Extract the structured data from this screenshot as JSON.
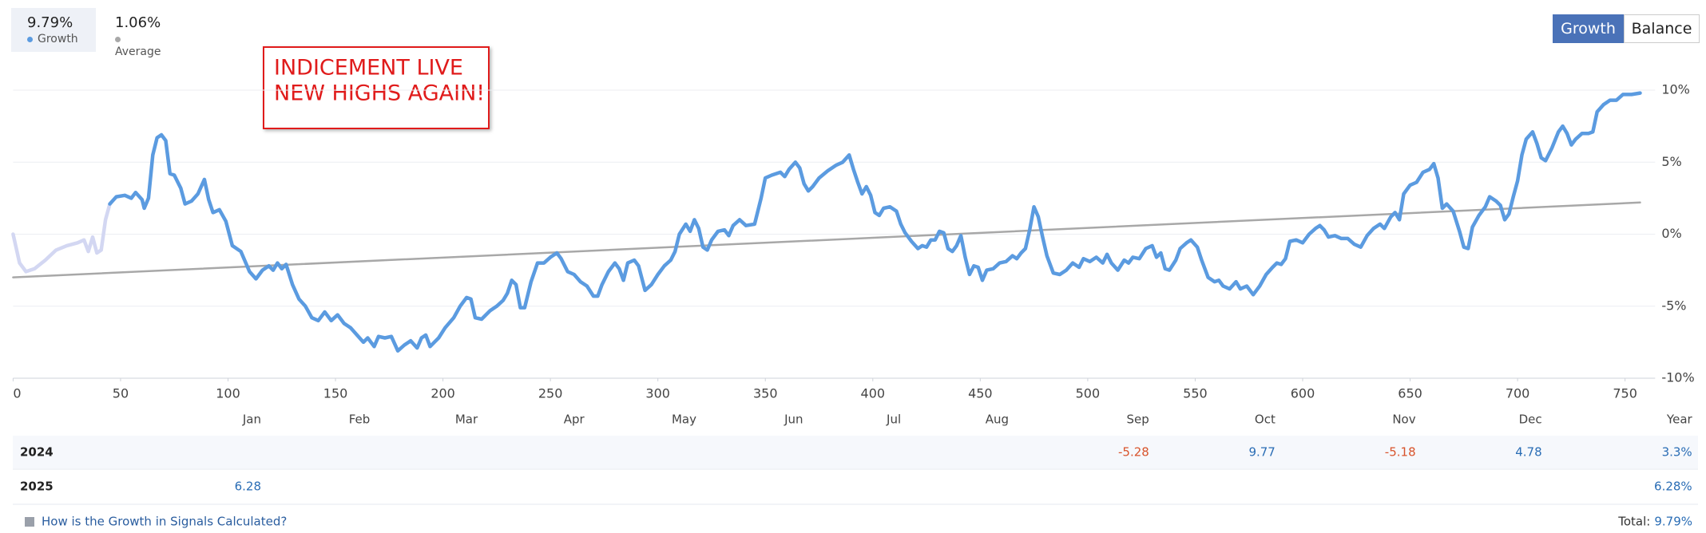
{
  "tabs": [
    {
      "value": "9.79%",
      "label": "Growth",
      "color": "#5b9be0"
    },
    {
      "value": "1.06%",
      "label": "Average",
      "color": "#a8a8a8"
    }
  ],
  "buttons": [
    "Growth",
    "Balance"
  ],
  "annotation": {
    "lines": [
      "INDICEMENT LIVE",
      "NEW HIGHS AGAIN!"
    ]
  },
  "chart_data": {
    "type": "line",
    "xlim": [
      0,
      764
    ],
    "xticks": [
      0,
      50,
      100,
      150,
      200,
      250,
      300,
      350,
      400,
      450,
      500,
      550,
      600,
      650,
      700,
      750
    ],
    "ylim": [
      -10,
      10
    ],
    "yticks": [
      {
        "value": 10,
        "label": "10%"
      },
      {
        "value": 5,
        "label": "5%"
      },
      {
        "value": 0,
        "label": "0%"
      },
      {
        "value": -5,
        "label": "-5%"
      },
      {
        "value": -10,
        "label": "-10%"
      }
    ],
    "grid": true,
    "series": [
      {
        "color": "#d3d7f2",
        "x": [
          0,
          3,
          6,
          10,
          15,
          20,
          25,
          30,
          33,
          35,
          37,
          39,
          41,
          43,
          45
        ],
        "values": [
          0,
          -2,
          -2.6,
          -2.4,
          -1.8,
          -1.1,
          -0.8,
          -0.6,
          -0.4,
          -1.2,
          -0.2,
          -1.3,
          -1.1,
          1.0,
          2.1
        ]
      },
      {
        "color": "#5b9be0",
        "x": [
          45,
          48,
          52,
          55,
          57,
          60,
          61,
          63,
          65,
          67,
          69,
          71,
          73,
          75,
          78,
          80,
          83,
          86,
          89,
          91,
          93,
          96,
          99,
          102,
          106,
          110,
          113,
          116,
          119,
          121,
          123,
          125,
          127,
          130,
          133,
          136,
          139,
          142,
          145,
          148,
          151,
          154,
          157,
          160,
          163,
          165,
          168,
          170,
          173,
          176,
          179,
          182,
          185,
          188,
          190,
          192,
          194,
          196,
          198,
          201,
          205,
          208,
          211,
          213,
          215,
          218,
          222,
          225,
          228,
          230,
          232,
          234,
          236,
          238,
          241,
          244,
          247,
          250,
          253,
          255,
          258,
          261,
          264,
          267,
          270,
          272,
          274,
          277,
          280,
          282,
          284,
          286,
          289,
          291,
          294,
          297,
          300,
          303,
          306,
          308,
          310,
          313,
          315,
          317,
          319,
          321,
          323,
          325,
          328,
          331,
          333,
          335,
          338,
          341,
          345,
          348,
          350,
          353,
          357,
          359,
          361,
          364,
          366,
          368,
          370,
          372,
          375,
          379,
          383,
          386,
          389,
          391,
          393,
          395,
          397,
          399,
          401,
          403,
          405,
          408,
          411,
          413,
          415,
          418,
          421,
          423,
          425,
          427,
          429,
          431,
          433,
          435,
          437,
          439,
          441,
          443,
          445,
          447,
          449,
          451,
          453,
          456,
          459,
          462,
          465,
          467,
          469,
          471,
          473,
          475,
          477,
          479,
          481,
          484,
          487,
          490,
          493,
          496,
          498,
          501,
          504,
          507,
          509,
          511,
          514,
          517,
          519,
          521,
          524,
          527,
          530,
          532,
          534,
          536,
          538,
          541,
          543,
          546,
          548,
          551,
          553,
          556,
          559,
          561,
          563,
          566,
          569,
          571,
          574,
          577,
          580,
          583,
          586,
          588,
          590,
          592,
          594,
          597,
          600,
          603,
          606,
          608,
          610,
          612,
          615,
          618,
          621,
          624,
          627,
          630,
          633,
          636,
          638,
          641,
          643,
          645,
          647,
          650,
          653,
          656,
          659,
          661,
          663,
          665,
          667,
          670,
          673,
          675,
          677,
          679,
          682,
          685,
          687,
          690,
          692,
          694,
          696,
          698,
          700,
          702,
          704,
          707,
          709,
          711,
          713,
          716,
          719,
          721,
          723,
          725,
          727,
          730,
          733,
          735,
          737,
          740,
          743,
          746,
          749,
          753,
          757
        ],
        "values": [
          2.1,
          2.6,
          2.7,
          2.5,
          2.9,
          2.4,
          1.8,
          2.5,
          5.5,
          6.7,
          6.9,
          6.5,
          4.2,
          4.1,
          3.2,
          2.1,
          2.3,
          2.8,
          3.8,
          2.4,
          1.5,
          1.7,
          0.9,
          -0.8,
          -1.2,
          -2.6,
          -3.1,
          -2.5,
          -2.2,
          -2.5,
          -2.0,
          -2.4,
          -2.1,
          -3.5,
          -4.5,
          -5.0,
          -5.8,
          -6.0,
          -5.4,
          -6.0,
          -5.6,
          -6.2,
          -6.5,
          -7.0,
          -7.5,
          -7.2,
          -7.8,
          -7.1,
          -7.2,
          -7.1,
          -8.1,
          -7.7,
          -7.4,
          -7.9,
          -7.2,
          -7.0,
          -7.8,
          -7.5,
          -7.2,
          -6.5,
          -5.8,
          -5.0,
          -4.4,
          -4.5,
          -5.8,
          -5.9,
          -5.3,
          -5.0,
          -4.6,
          -4.1,
          -3.2,
          -3.5,
          -5.1,
          -5.1,
          -3.3,
          -2.0,
          -2.0,
          -1.6,
          -1.3,
          -1.7,
          -2.6,
          -2.8,
          -3.3,
          -3.6,
          -4.3,
          -4.3,
          -3.5,
          -2.6,
          -2.0,
          -2.4,
          -3.2,
          -2.0,
          -1.8,
          -2.2,
          -3.9,
          -3.5,
          -2.8,
          -2.2,
          -1.8,
          -1.2,
          0.0,
          0.7,
          0.2,
          1.0,
          0.4,
          -0.9,
          -1.1,
          -0.4,
          0.2,
          0.3,
          -0.1,
          0.6,
          1.0,
          0.6,
          0.7,
          2.5,
          3.9,
          4.1,
          4.3,
          4.0,
          4.5,
          5.0,
          4.6,
          3.5,
          3.0,
          3.3,
          3.9,
          4.4,
          4.8,
          5.0,
          5.5,
          4.5,
          3.6,
          2.8,
          3.3,
          2.7,
          1.5,
          1.3,
          1.8,
          1.9,
          1.6,
          0.7,
          0.1,
          -0.5,
          -1.0,
          -0.8,
          -0.9,
          -0.4,
          -0.4,
          0.2,
          0.1,
          -1.0,
          -1.2,
          -0.8,
          -0.1,
          -1.6,
          -2.8,
          -2.2,
          -2.3,
          -3.2,
          -2.5,
          -2.4,
          -2.0,
          -1.9,
          -1.5,
          -1.7,
          -1.3,
          -1.0,
          0.3,
          1.9,
          1.2,
          -0.2,
          -1.5,
          -2.7,
          -2.8,
          -2.5,
          -2.0,
          -2.3,
          -1.7,
          -1.9,
          -1.6,
          -2.0,
          -1.4,
          -2.0,
          -2.5,
          -1.8,
          -2.0,
          -1.6,
          -1.7,
          -1.0,
          -0.8,
          -1.6,
          -1.3,
          -2.4,
          -2.5,
          -1.8,
          -1.0,
          -0.6,
          -0.4,
          -0.9,
          -1.8,
          -3.0,
          -3.3,
          -3.2,
          -3.6,
          -3.8,
          -3.3,
          -3.8,
          -3.6,
          -4.2,
          -3.6,
          -2.8,
          -2.3,
          -2.0,
          -2.1,
          -1.7,
          -0.5,
          -0.4,
          -0.6,
          0.0,
          0.4,
          0.6,
          0.3,
          -0.2,
          -0.1,
          -0.3,
          -0.3,
          -0.7,
          -0.9,
          -0.1,
          0.4,
          0.7,
          0.4,
          1.2,
          1.5,
          1.0,
          2.8,
          3.4,
          3.6,
          4.3,
          4.5,
          4.9,
          3.9,
          1.8,
          2.1,
          1.6,
          0.2,
          -0.9,
          -1.0,
          0.5,
          1.3,
          1.9,
          2.6,
          2.3,
          2.0,
          1.0,
          1.4,
          2.6,
          3.7,
          5.5,
          6.6,
          7.1,
          6.3,
          5.3,
          5.1,
          6.0,
          7.1,
          7.5,
          7.0,
          6.2,
          6.6,
          7.0,
          7.0,
          7.1,
          8.5,
          9.0,
          9.3,
          9.3,
          9.7,
          9.7,
          9.8
        ]
      },
      {
        "color": "#a8a8a8",
        "x": [
          0,
          757
        ],
        "values": [
          -3.0,
          2.2
        ]
      }
    ]
  },
  "table": {
    "columns": [
      "Jan",
      "Feb",
      "Mar",
      "Apr",
      "May",
      "Jun",
      "Jul",
      "Aug",
      "Sep",
      "Oct",
      "Nov",
      "Dec",
      "Year"
    ],
    "rows": [
      {
        "year": "2024",
        "cells": [
          null,
          null,
          null,
          null,
          null,
          null,
          null,
          null,
          -5.28,
          9.77,
          -5.18,
          4.78,
          "3.3%"
        ]
      },
      {
        "year": "2025",
        "cells": [
          6.28,
          null,
          null,
          null,
          null,
          null,
          null,
          null,
          null,
          null,
          null,
          null,
          "6.28%"
        ]
      }
    ]
  },
  "footer": {
    "link": "How is the Growth in Signals Calculated?",
    "total_label": "Total:",
    "total_value": "9.79%"
  }
}
